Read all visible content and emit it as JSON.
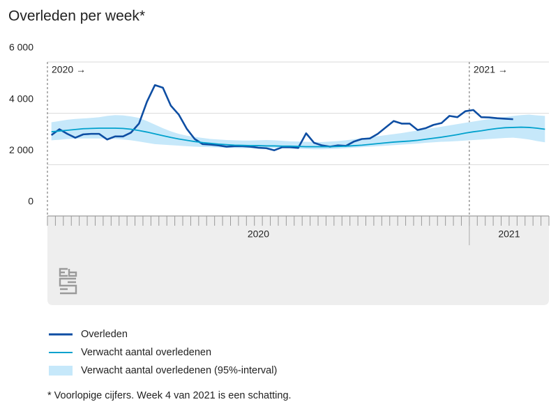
{
  "chart_data": {
    "type": "line",
    "title": "Overleden per week*",
    "footnote": "* Voorlopige cijfers. Week 4 van 2021 is een schatting.",
    "annotations": [
      "2020 →",
      "2021 →"
    ],
    "periods": [
      {
        "label": "2020",
        "weeks": 53
      },
      {
        "label": "2021",
        "weeks": 10
      }
    ],
    "categories": [
      null,
      null,
      null,
      null,
      null,
      null,
      null,
      null,
      null,
      null,
      null,
      null,
      null,
      null,
      null,
      null,
      null,
      null,
      null,
      null,
      null,
      null,
      null,
      null,
      null,
      null,
      null,
      null,
      null,
      null,
      null,
      null,
      null,
      null,
      null,
      null,
      null,
      null,
      null,
      null,
      null,
      null,
      null,
      null,
      null,
      null,
      null,
      null,
      null,
      null,
      null,
      null,
      null,
      null,
      null,
      null,
      null,
      null,
      null,
      null,
      null,
      null,
      null
    ],
    "ylim": [
      0,
      6000
    ],
    "yticks": [
      0,
      {
        "value": 2000,
        "label": "2 000"
      },
      {
        "value": 4000,
        "label": "4 000"
      },
      {
        "value": 6000,
        "label": "6 000"
      }
    ],
    "grid": true,
    "series": [
      {
        "name": "Overleden",
        "color": "#0e4ea3",
        "values": [
          3150,
          3380,
          3200,
          3050,
          3180,
          3200,
          3200,
          2980,
          3100,
          3100,
          3250,
          3600,
          4450,
          5100,
          5000,
          4300,
          3950,
          3400,
          3000,
          2800,
          2780,
          2750,
          2700,
          2720,
          2720,
          2700,
          2660,
          2640,
          2560,
          2680,
          2680,
          2650,
          3220,
          2850,
          2750,
          2700,
          2750,
          2730,
          2900,
          3000,
          3020,
          3200,
          3450,
          3700,
          3600,
          3600,
          3350,
          3420,
          3550,
          3620,
          3900,
          3850,
          4080,
          4130,
          3850,
          3840,
          3810,
          3790,
          3770,
          null,
          null,
          null,
          null
        ]
      },
      {
        "name": "Verwacht aantal overledenen",
        "color": "#00a1cd",
        "values": [
          3280,
          3310,
          3340,
          3370,
          3400,
          3410,
          3420,
          3420,
          3420,
          3410,
          3380,
          3330,
          3270,
          3200,
          3130,
          3060,
          3000,
          2950,
          2900,
          2860,
          2830,
          2800,
          2780,
          2760,
          2750,
          2740,
          2740,
          2730,
          2730,
          2720,
          2720,
          2710,
          2700,
          2700,
          2700,
          2700,
          2710,
          2720,
          2740,
          2760,
          2790,
          2820,
          2850,
          2880,
          2900,
          2920,
          2950,
          2990,
          3030,
          3070,
          3120,
          3170,
          3230,
          3280,
          3320,
          3370,
          3410,
          3440,
          3450,
          3460,
          3450,
          3420,
          3380
        ]
      },
      {
        "name": "Verwacht aantal overledenen (95%-interval)",
        "type": "band",
        "color": "#c6e8fa",
        "upper": [
          3650,
          3700,
          3750,
          3780,
          3800,
          3820,
          3850,
          3900,
          3930,
          3920,
          3880,
          3820,
          3700,
          3560,
          3420,
          3300,
          3200,
          3130,
          3080,
          3040,
          3000,
          2980,
          2960,
          2950,
          2940,
          2940,
          2950,
          2960,
          2950,
          2930,
          2910,
          2900,
          2890,
          2880,
          2880,
          2900,
          2920,
          2950,
          2990,
          3030,
          3070,
          3110,
          3150,
          3190,
          3230,
          3280,
          3330,
          3380,
          3430,
          3480,
          3530,
          3580,
          3630,
          3680,
          3730,
          3780,
          3820,
          3860,
          3900,
          3930,
          3950,
          3920,
          3900
        ],
        "lower": [
          2950,
          2970,
          3000,
          3010,
          3020,
          3020,
          3020,
          3010,
          3000,
          2980,
          2950,
          2900,
          2850,
          2800,
          2780,
          2760,
          2740,
          2720,
          2700,
          2690,
          2680,
          2670,
          2660,
          2650,
          2640,
          2640,
          2640,
          2650,
          2650,
          2640,
          2630,
          2620,
          2610,
          2600,
          2600,
          2610,
          2620,
          2640,
          2660,
          2680,
          2700,
          2720,
          2740,
          2760,
          2780,
          2800,
          2820,
          2850,
          2870,
          2890,
          2900,
          2920,
          2940,
          2960,
          2980,
          3000,
          3020,
          3040,
          3050,
          3020,
          2980,
          2920,
          2870
        ]
      }
    ]
  }
}
